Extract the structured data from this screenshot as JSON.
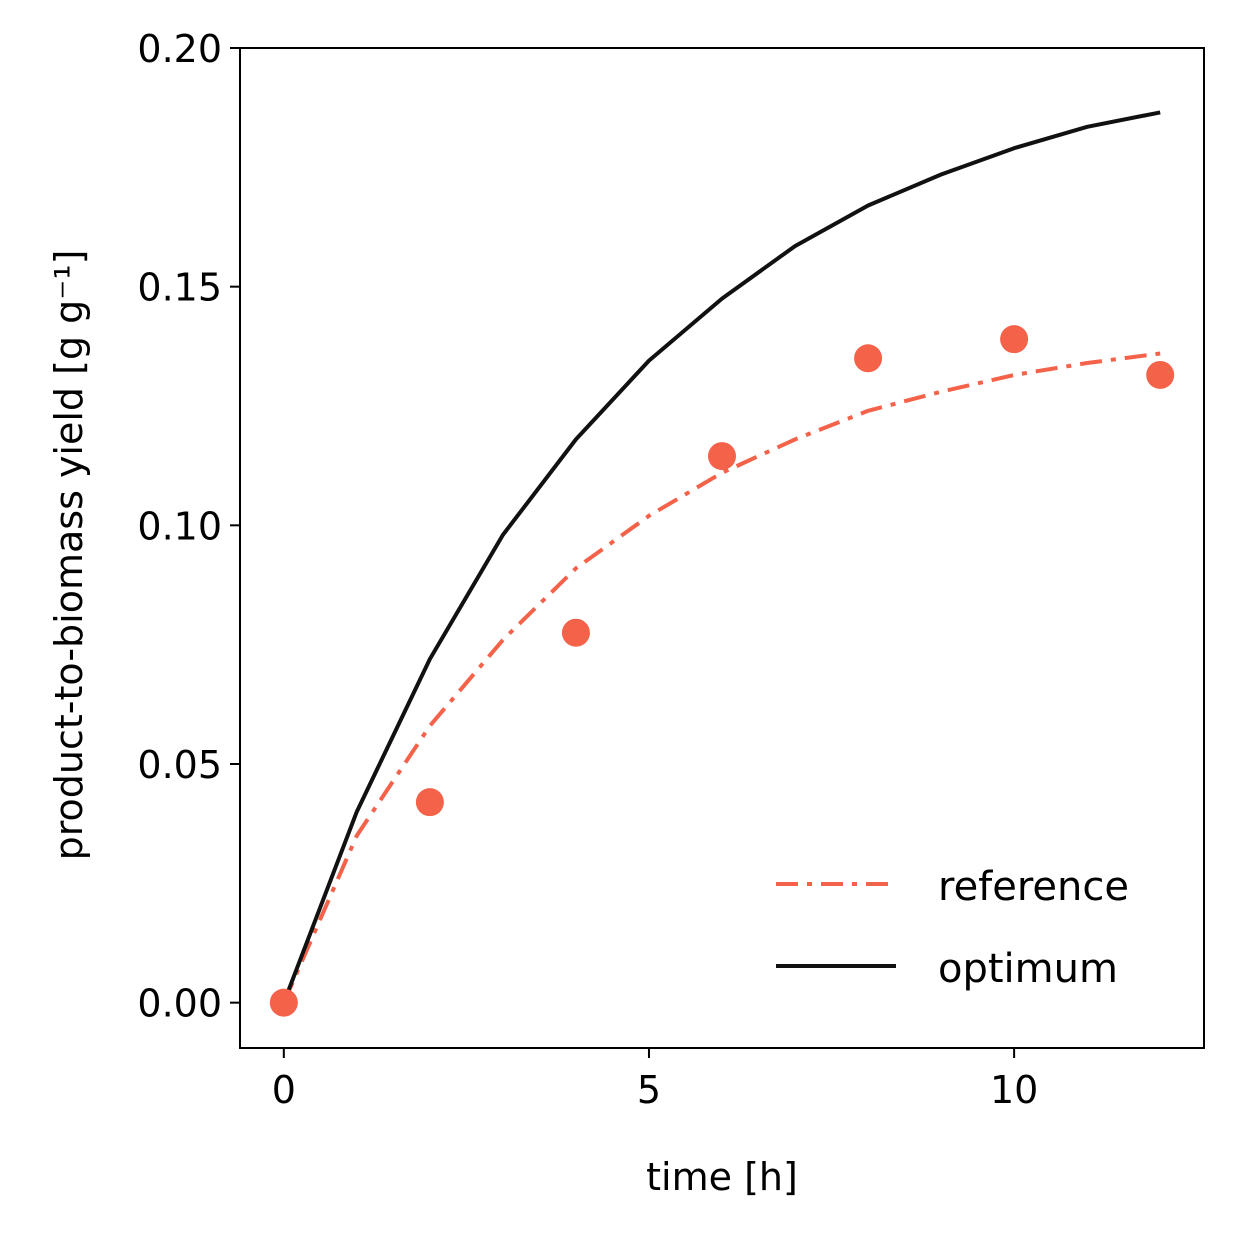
{
  "chart_data": {
    "type": "line",
    "xlabel": "time [h]",
    "ylabel": "product-to-biomass yield [g g⁻¹]",
    "xlim": [
      -0.6,
      12.6
    ],
    "ylim": [
      -0.0095,
      0.2
    ],
    "x_ticks": [
      0,
      5,
      10
    ],
    "x_tick_labels": [
      "0",
      "5",
      "10"
    ],
    "y_ticks": [
      0.0,
      0.05,
      0.1,
      0.15,
      0.2
    ],
    "y_tick_labels": [
      "0.00",
      "0.05",
      "0.10",
      "0.15",
      "0.20"
    ],
    "grid": false,
    "legend_position": "lower-right",
    "colors": {
      "reference": "#f4624a",
      "optimum": "#111111",
      "points": "#f4624a"
    },
    "series": [
      {
        "name": "reference",
        "style": "dashdot",
        "x": [
          0,
          1,
          2,
          3,
          4,
          5,
          6,
          7,
          8,
          9,
          10,
          11,
          12
        ],
        "y": [
          0.0,
          0.035,
          0.058,
          0.076,
          0.091,
          0.102,
          0.111,
          0.118,
          0.124,
          0.128,
          0.1315,
          0.134,
          0.136
        ]
      },
      {
        "name": "optimum",
        "style": "solid",
        "x": [
          0,
          1,
          2,
          3,
          4,
          5,
          6,
          7,
          8,
          9,
          10,
          11,
          12
        ],
        "y": [
          0.0,
          0.04,
          0.072,
          0.098,
          0.118,
          0.1345,
          0.1475,
          0.1585,
          0.167,
          0.1735,
          0.179,
          0.1835,
          0.1865
        ]
      }
    ],
    "points": {
      "x": [
        0,
        2,
        4,
        6,
        8,
        10,
        12
      ],
      "y": [
        0.0,
        0.042,
        0.0775,
        0.1145,
        0.135,
        0.139,
        0.1315
      ]
    }
  }
}
